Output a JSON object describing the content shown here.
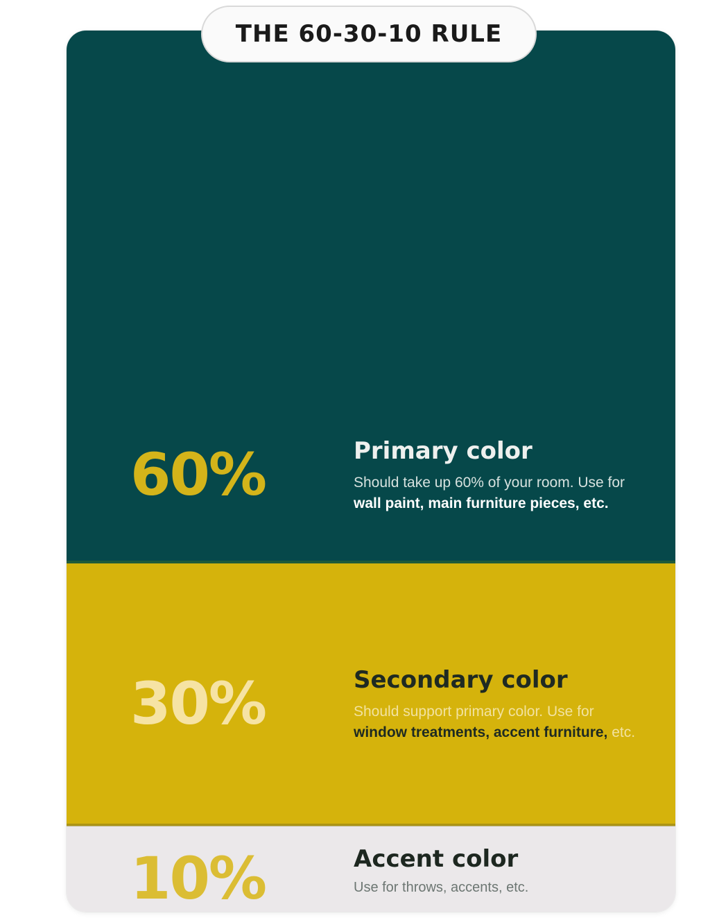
{
  "title": "THE 60-30-10 RULE",
  "sections": [
    {
      "percent": "60%",
      "heading": "Primary color",
      "desc_plain": "Should take up 60% of your room. Use for ",
      "desc_bold": "wall paint, main furniture pieces, etc.",
      "desc_tail": "",
      "bg_color": "#06484a",
      "percent_color": "#d4b41a"
    },
    {
      "percent": "30%",
      "heading": "Secondary color",
      "desc_plain": "Should support primary color. Use for ",
      "desc_bold": "window treatments, accent furniture,",
      "desc_tail": " etc.",
      "bg_color": "#d5b30c",
      "percent_color": "#f6e3a4"
    },
    {
      "percent": "10%",
      "heading": "Accent color",
      "desc_plain": "Use for throws, accents, etc.",
      "desc_bold": "",
      "desc_tail": "",
      "bg_color": "#ebe8ea",
      "percent_color": "#dbbd34"
    }
  ]
}
